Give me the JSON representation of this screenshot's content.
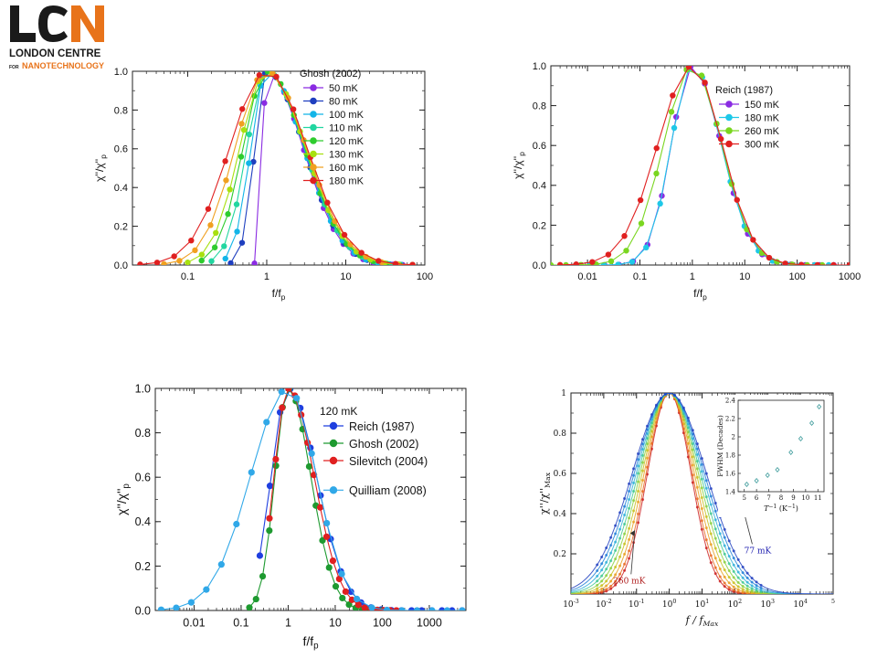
{
  "logo": {
    "letters": [
      "L",
      "C",
      "N"
    ],
    "line1": "LONDON CENTRE",
    "line2_prefix": "FOR",
    "line2_main": "NANOTECHNOLOGY",
    "colors": {
      "dark": "#1a1a1a",
      "orange": "#e8731a"
    }
  },
  "chart_data": [
    {
      "id": "c1",
      "type": "line",
      "xscale": "log",
      "xlim": [
        0.02,
        100
      ],
      "ylim": [
        0,
        1.0
      ],
      "xticks": [
        {
          "v": 0.1,
          "l": "0.1"
        },
        {
          "v": 1,
          "l": "1"
        },
        {
          "v": 10,
          "l": "10"
        },
        {
          "v": 100,
          "l": "100"
        }
      ],
      "yticks": [
        {
          "v": 0,
          "l": "0.0"
        },
        {
          "v": 0.2,
          "l": "0.2"
        },
        {
          "v": 0.4,
          "l": "0.4"
        },
        {
          "v": 0.6,
          "l": "0.6"
        },
        {
          "v": 0.8,
          "l": "0.8"
        },
        {
          "v": 1,
          "l": "1.0"
        }
      ],
      "xlabel": "f/f",
      "xlabel_sub": "p",
      "ylabel": "χ''/χ''",
      "ylabel_sub": "p",
      "legend_title": "Ghosh (2002)",
      "series": [
        {
          "name": "50 mK",
          "color": "#8a2be2",
          "sigma_low": 0.05,
          "sigma_high": 0.46,
          "xmin": 0.7,
          "xmax": 70
        },
        {
          "name": "80 mK",
          "color": "#1f3fbf",
          "sigma_low": 0.15,
          "sigma_high": 0.47,
          "xmin": 0.35,
          "xmax": 70
        },
        {
          "name": "100 mK",
          "color": "#12b5e8",
          "sigma_low": 0.2,
          "sigma_high": 0.47,
          "xmin": 0.3,
          "xmax": 70
        },
        {
          "name": "110 mK",
          "color": "#22d6a0",
          "sigma_low": 0.25,
          "sigma_high": 0.48,
          "xmin": 0.2,
          "xmax": 70
        },
        {
          "name": "120 mK",
          "color": "#2ecc2e",
          "sigma_low": 0.3,
          "sigma_high": 0.48,
          "xmin": 0.15,
          "xmax": 70
        },
        {
          "name": "130 mK",
          "color": "#a8e010",
          "sigma_low": 0.34,
          "sigma_high": 0.49,
          "xmin": 0.1,
          "xmax": 70
        },
        {
          "name": "160 mK",
          "color": "#f0a020",
          "sigma_low": 0.4,
          "sigma_high": 0.5,
          "xmin": 0.05,
          "xmax": 70
        },
        {
          "name": "180 mK",
          "color": "#e02020",
          "sigma_low": 0.47,
          "sigma_high": 0.51,
          "xmin": 0.025,
          "xmax": 70
        }
      ]
    },
    {
      "id": "c2",
      "type": "line",
      "xscale": "log",
      "xlim": [
        0.002,
        1000
      ],
      "ylim": [
        0,
        1.0
      ],
      "xticks": [
        {
          "v": 0.01,
          "l": "0.01"
        },
        {
          "v": 0.1,
          "l": "0.1"
        },
        {
          "v": 1,
          "l": "1"
        },
        {
          "v": 10,
          "l": "10"
        },
        {
          "v": 100,
          "l": "100"
        },
        {
          "v": 1000,
          "l": "1000"
        }
      ],
      "yticks": [
        {
          "v": 0,
          "l": "0.0"
        },
        {
          "v": 0.2,
          "l": "0.2"
        },
        {
          "v": 0.4,
          "l": "0.4"
        },
        {
          "v": 0.6,
          "l": "0.6"
        },
        {
          "v": 0.8,
          "l": "0.8"
        },
        {
          "v": 1,
          "l": "1.0"
        }
      ],
      "xlabel": "f/f",
      "xlabel_sub": "p",
      "ylabel": "χ''/χ''",
      "ylabel_sub": "p",
      "legend_title": "Reich (1987)",
      "series": [
        {
          "name": "150 mK",
          "color": "#8a2be2",
          "sigma_low": 0.4,
          "sigma_high": 0.55,
          "xmin": 0.006,
          "xmax": 500
        },
        {
          "name": "180 mK",
          "color": "#1ec8e8",
          "sigma_low": 0.4,
          "sigma_high": 0.55,
          "xmin": 0.006,
          "xmax": 400
        },
        {
          "name": "260 mK",
          "color": "#7ad620",
          "sigma_low": 0.55,
          "sigma_high": 0.56,
          "xmin": 0.002,
          "xmax": 300
        },
        {
          "name": "300 mK",
          "color": "#e02020",
          "sigma_low": 0.66,
          "sigma_high": 0.57,
          "xmin": 0.003,
          "xmax": 1000
        }
      ]
    },
    {
      "id": "c3",
      "type": "line",
      "xscale": "log",
      "xlim": [
        0.0015,
        6000
      ],
      "ylim": [
        0,
        1.0
      ],
      "xticks": [
        {
          "v": 0.01,
          "l": "0.01"
        },
        {
          "v": 0.1,
          "l": "0.1"
        },
        {
          "v": 1,
          "l": "1"
        },
        {
          "v": 10,
          "l": "10"
        },
        {
          "v": 100,
          "l": "100"
        },
        {
          "v": 1000,
          "l": "1000"
        }
      ],
      "yticks": [
        {
          "v": 0,
          "l": "0.0"
        },
        {
          "v": 0.2,
          "l": "0.2"
        },
        {
          "v": 0.4,
          "l": "0.4"
        },
        {
          "v": 0.6,
          "l": "0.6"
        },
        {
          "v": 0.8,
          "l": "0.8"
        },
        {
          "v": 1,
          "l": "1.0"
        }
      ],
      "xlabel": "f/f",
      "xlabel_sub": "p",
      "ylabel": "χ''/χ''",
      "ylabel_sub": "p",
      "legend_title": "120 mK",
      "series": [
        {
          "name": "Reich (1987)",
          "color": "#1f3fdf",
          "sigma_low": 0.36,
          "sigma_high": 0.6,
          "xmin": 0.25,
          "xmax": 5000
        },
        {
          "name": "Ghosh (2002)",
          "color": "#1e9a30",
          "sigma_low": 0.28,
          "sigma_high": 0.48,
          "xmin": 0.15,
          "xmax": 100
        },
        {
          "name": "Silevitch (2004)",
          "color": "#e02020",
          "sigma_low": 0.3,
          "sigma_high": 0.55,
          "xmin": 0.4,
          "xmax": 200
        },
        {
          "name": "Quilliam (2008)",
          "color": "#30a8e8",
          "sigma_low": 0.8,
          "sigma_high": 0.6,
          "xmin": 0.002,
          "xmax": 5000
        }
      ]
    },
    {
      "id": "c4",
      "type": "line",
      "xscale": "log",
      "xlim": [
        0.001,
        100000
      ],
      "ylim": [
        0,
        1.0
      ],
      "xticks": [
        {
          "v": 0.001,
          "b": "10",
          "e": "-3"
        },
        {
          "v": 0.01,
          "b": "10",
          "e": "-2"
        },
        {
          "v": 0.1,
          "b": "10",
          "e": "-1"
        },
        {
          "v": 1,
          "b": "10",
          "e": "0"
        },
        {
          "v": 10,
          "b": "10",
          "e": "1"
        },
        {
          "v": 100,
          "b": "10",
          "e": "2"
        },
        {
          "v": 1000,
          "b": "10",
          "e": "3"
        },
        {
          "v": 10000,
          "b": "10",
          "e": "4"
        },
        {
          "v": 100000,
          "b": "",
          "e": "5"
        }
      ],
      "yticks": [
        {
          "v": 0.2,
          "l": "0.2"
        },
        {
          "v": 0.4,
          "l": "0.4"
        },
        {
          "v": 0.6,
          "l": "0.6"
        },
        {
          "v": 0.8,
          "l": "0.8"
        },
        {
          "v": 1,
          "l": "1"
        }
      ],
      "xlabel": "f / f",
      "xlabel_sub": "Max",
      "ylabel": "χ''/χ''",
      "ylabel_sub": "Max",
      "annotations": [
        {
          "text": "260 mK",
          "color": "#b02020",
          "x": 0.06,
          "y": 0.18
        },
        {
          "text": "77 mK",
          "color": "#2020b0",
          "x": 500,
          "y": 0.33
        }
      ],
      "series": [
        {
          "name": "260 mK",
          "color": "#cc2020",
          "sigma": 0.66
        },
        {
          "color": "#e86a20",
          "sigma": 0.7
        },
        {
          "color": "#e8a020",
          "sigma": 0.76
        },
        {
          "color": "#c8c020",
          "sigma": 0.82
        },
        {
          "color": "#8ad040",
          "sigma": 0.88
        },
        {
          "color": "#40c890",
          "sigma": 0.94
        },
        {
          "color": "#30b0d8",
          "sigma": 1.0
        },
        {
          "color": "#2080d8",
          "sigma": 1.06
        },
        {
          "name": "77 mK",
          "color": "#2040c0",
          "sigma": 1.12
        }
      ],
      "inset": {
        "type": "scatter",
        "xlabel": "T",
        "xlabel_sup": "−1",
        "xlabel_unit": "(K",
        "ylabel": "FWHM (Decades)",
        "xlim": [
          4.5,
          11.5
        ],
        "ylim": [
          1.4,
          2.4
        ],
        "xticks": [
          5,
          6,
          7,
          8,
          9,
          10,
          11
        ],
        "yticks": [
          {
            "v": 1.4,
            "l": "1.4"
          },
          {
            "v": 1.6,
            "l": "1.6"
          },
          {
            "v": 1.8,
            "l": "1.8"
          },
          {
            "v": 2,
            "l": "2"
          },
          {
            "v": 2.2,
            "l": "2.2"
          },
          {
            "v": 2.4,
            "l": "2.4"
          }
        ],
        "x": [
          5.2,
          6.0,
          6.9,
          7.7,
          8.8,
          9.6,
          10.5,
          11.1
        ],
        "y": [
          1.48,
          1.52,
          1.58,
          1.64,
          1.83,
          1.98,
          2.15,
          2.33
        ],
        "color": "#3a9a9a"
      }
    }
  ]
}
